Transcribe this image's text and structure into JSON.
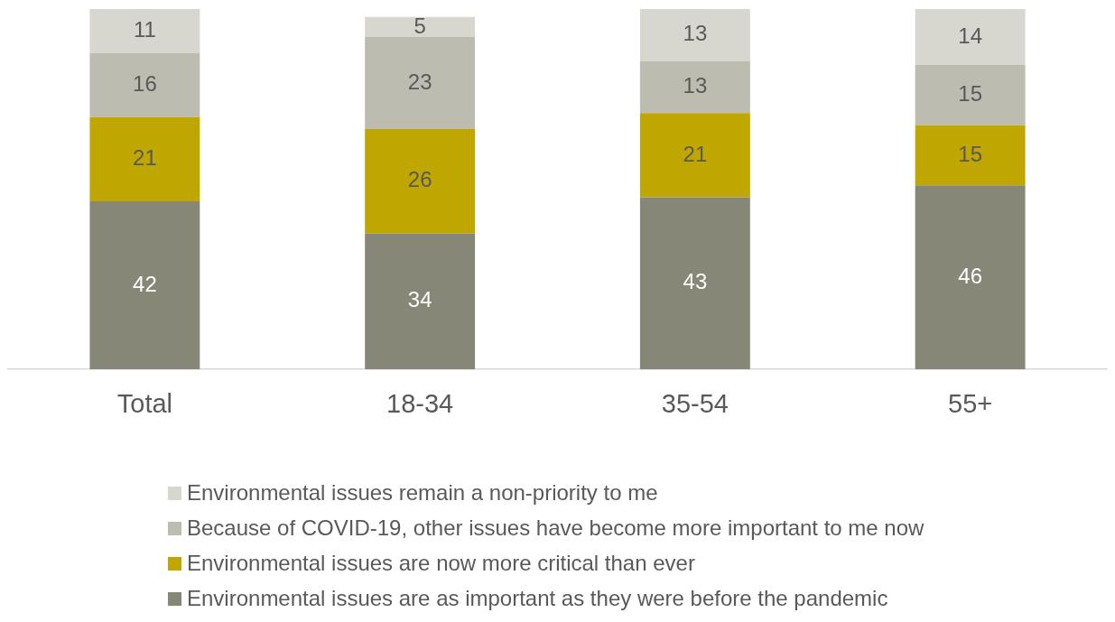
{
  "chart_data": {
    "type": "bar",
    "stacked": true,
    "data_labels": true,
    "legend": "bottom",
    "grid": false,
    "categories": [
      "Total",
      "18-34",
      "35-54",
      "55+"
    ],
    "series": [
      {
        "name": "Environmental issues are as important as they were before the pandemic",
        "color": "#878778",
        "values": [
          42,
          34,
          43,
          46
        ]
      },
      {
        "name": "Environmental issues are now more critical than ever",
        "color": "#bfa600",
        "values": [
          21,
          26,
          21,
          15
        ]
      },
      {
        "name": "Because of COVID-19, other issues have become more important to me now",
        "color": "#bcbcb0",
        "values": [
          16,
          23,
          13,
          15
        ]
      },
      {
        "name": "Environmental issues remain a non-priority to me",
        "color": "#d7d7cf",
        "values": [
          11,
          5,
          13,
          14
        ]
      }
    ]
  }
}
